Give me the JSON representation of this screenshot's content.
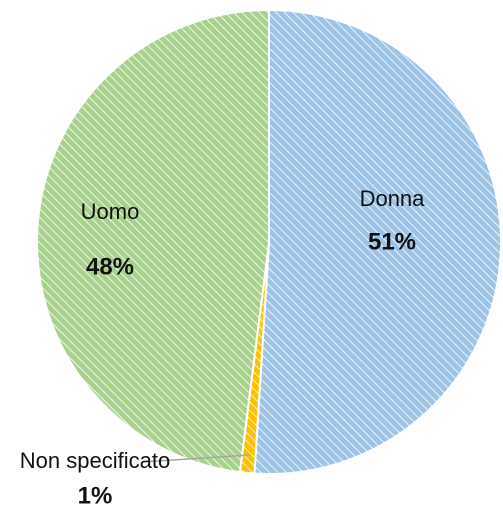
{
  "chart_data": {
    "type": "pie",
    "categories": [
      "Donna",
      "Non specificato",
      "Uomo"
    ],
    "values": [
      51,
      1,
      48
    ],
    "value_labels": [
      "51%",
      "1%",
      "48%"
    ],
    "colors": [
      "#9dc3e6",
      "#ffc000",
      "#a9d18e"
    ]
  }
}
